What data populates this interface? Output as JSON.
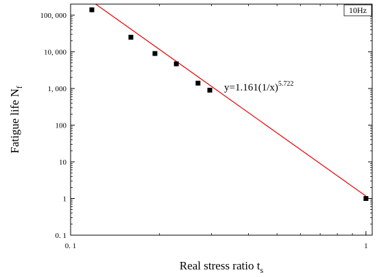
{
  "chart_data": {
    "type": "scatter",
    "x_scale": "log",
    "y_scale": "log",
    "xlim": [
      0.1,
      1.05
    ],
    "ylim": [
      0.1,
      200000
    ],
    "xlabel": {
      "text": "Real stress ratio t",
      "sub": "s"
    },
    "ylabel": {
      "text": "Fatigue life N",
      "sub": "f"
    },
    "x_ticks": [
      {
        "value": 0.1,
        "label": "0. 1"
      },
      {
        "value": 1,
        "label": "1"
      }
    ],
    "x_minor_ticks": [
      0.2,
      0.3,
      0.4,
      0.5,
      0.6,
      0.7,
      0.8,
      0.9
    ],
    "y_ticks": [
      {
        "value": 0.1,
        "label": "0. 1"
      },
      {
        "value": 1,
        "label": "1"
      },
      {
        "value": 10,
        "label": "10"
      },
      {
        "value": 100,
        "label": "100"
      },
      {
        "value": 1000,
        "label": "1, 000"
      },
      {
        "value": 10000,
        "label": "10, 000"
      },
      {
        "value": 100000,
        "label": "100, 000"
      }
    ],
    "legend": "10Hz",
    "legend_position": "top-right",
    "grid": false,
    "series": [
      {
        "name": "10Hz",
        "marker": "square",
        "color": "#000000",
        "x": [
          0.118,
          0.16,
          0.193,
          0.228,
          0.27,
          0.296,
          1.0
        ],
        "y": [
          140000,
          25000,
          9000,
          4700,
          1400,
          900,
          1
        ]
      }
    ],
    "fit": {
      "color": "#e00000",
      "a": 1.161,
      "b": 5.722,
      "x_range": [
        0.118,
        1.0
      ],
      "equation": {
        "prefix": "y=1.161(1/x)",
        "exponent": "5.722"
      }
    }
  }
}
